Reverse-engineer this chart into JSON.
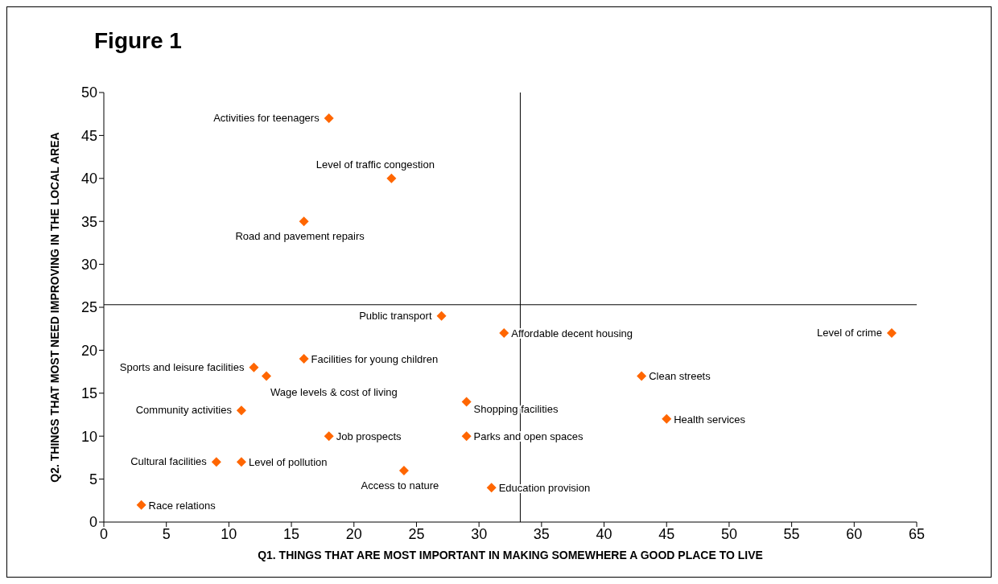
{
  "chart_data": {
    "type": "scatter",
    "title": "Figure 1",
    "xlabel": "Q1. THINGS THAT ARE MOST IMPORTANT IN MAKING SOMEWHERE A GOOD PLACE TO LIVE",
    "ylabel": "Q2. THINGS THAT MOST NEED IMPROVING IN THE LOCAL AREA",
    "x": [
      18,
      23,
      16,
      27,
      32,
      63,
      16,
      12,
      13,
      43,
      29,
      11,
      45,
      18,
      29,
      9,
      11,
      24,
      31,
      3
    ],
    "values": [
      47,
      40,
      35,
      24,
      22,
      22,
      19,
      18,
      17,
      17,
      14,
      13,
      12,
      10,
      10,
      7,
      7,
      6,
      4,
      2
    ],
    "color": "#ff6600",
    "marker": "diamond",
    "grid": false,
    "legend": false,
    "xlim": [
      0,
      65
    ],
    "xticks": [
      0,
      5,
      10,
      15,
      20,
      25,
      30,
      35,
      40,
      45,
      50,
      55,
      60,
      65
    ],
    "ylim": [
      0,
      50
    ],
    "yticks": [
      0,
      5,
      10,
      15,
      20,
      25,
      30,
      35,
      40,
      45,
      50
    ],
    "ref_lines": [
      {
        "axis": "x",
        "value": 33.3,
        "color": "#000000"
      },
      {
        "axis": "y",
        "value": 25.3,
        "color": "#000000"
      }
    ],
    "annotations": [
      {
        "text": "Activities for teenagers",
        "x": 18,
        "y": 47
      },
      {
        "text": "Level of traffic congestion",
        "x": 23,
        "y": 40
      },
      {
        "text": "Road and pavement repairs",
        "x": 16,
        "y": 35
      },
      {
        "text": "Public transport",
        "x": 27,
        "y": 24
      },
      {
        "text": "Affordable decent housing",
        "x": 32,
        "y": 22
      },
      {
        "text": "Level of crime",
        "x": 63,
        "y": 22
      },
      {
        "text": "Facilities for young children",
        "x": 16,
        "y": 19
      },
      {
        "text": "Sports and leisure facilities",
        "x": 12,
        "y": 18
      },
      {
        "text": "Wage levels & cost of living",
        "x": 13,
        "y": 17
      },
      {
        "text": "Clean streets",
        "x": 43,
        "y": 17
      },
      {
        "text": "Shopping facilities",
        "x": 29,
        "y": 14
      },
      {
        "text": "Community activities",
        "x": 11,
        "y": 13
      },
      {
        "text": "Health services",
        "x": 45,
        "y": 12
      },
      {
        "text": "Job prospects",
        "x": 18,
        "y": 10
      },
      {
        "text": "Parks and open spaces",
        "x": 29,
        "y": 10
      },
      {
        "text": "Cultural facilities",
        "x": 9,
        "y": 7
      },
      {
        "text": "Level of pollution",
        "x": 11,
        "y": 7
      },
      {
        "text": "Access to nature",
        "x": 24,
        "y": 6
      },
      {
        "text": "Education provision",
        "x": 31,
        "y": 4
      },
      {
        "text": "Race relations",
        "x": 3,
        "y": 2
      }
    ]
  }
}
